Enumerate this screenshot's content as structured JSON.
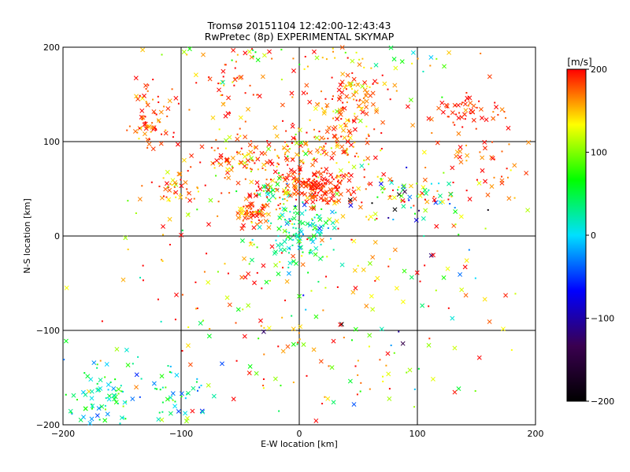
{
  "chart_data": {
    "type": "scatter",
    "title": "Tromsø 20151104 12:42:00-12:43:43",
    "subtitle": "RwPretec (8p) EXPERIMENTAL SKYMAP",
    "xlabel": "E-W location [km]",
    "ylabel": "N-S location [km]",
    "xlim": [
      -200,
      200
    ],
    "ylim": [
      -200,
      200
    ],
    "x_ticks": [
      -200,
      -100,
      0,
      100,
      200
    ],
    "y_ticks": [
      -200,
      -100,
      0,
      100,
      200
    ],
    "grid": true,
    "colorbar": {
      "label": "[m/s]",
      "range": [
        -200,
        200
      ],
      "ticks": [
        -200,
        -100,
        0,
        100,
        200
      ],
      "colormap": [
        "#000000",
        "#3a0050",
        "#0000ff",
        "#00e0ff",
        "#00ff00",
        "#ffff00",
        "#ff0000"
      ]
    },
    "marker_types": [
      "x",
      "dot"
    ],
    "clusters": [
      {
        "x": -125,
        "y": 130,
        "sx": 10,
        "sy": 16,
        "n": 70,
        "v": 180,
        "vs": 25
      },
      {
        "x": -100,
        "y": 50,
        "sx": 10,
        "sy": 8,
        "n": 40,
        "v": 170,
        "vs": 30
      },
      {
        "x": -40,
        "y": 80,
        "sx": 25,
        "sy": 15,
        "n": 110,
        "v": 170,
        "vs": 30
      },
      {
        "x": -60,
        "y": 150,
        "sx": 15,
        "sy": 20,
        "n": 40,
        "v": 180,
        "vs": 30
      },
      {
        "x": -40,
        "y": 25,
        "sx": 8,
        "sy": 6,
        "n": 70,
        "v": 180,
        "vs": 20
      },
      {
        "x": -20,
        "y": 45,
        "sx": 12,
        "sy": 10,
        "n": 50,
        "v": 120,
        "vs": 90
      },
      {
        "x": 15,
        "y": 52,
        "sx": 15,
        "sy": 8,
        "n": 160,
        "v": 190,
        "vs": 15
      },
      {
        "x": 40,
        "y": 110,
        "sx": 18,
        "sy": 30,
        "n": 130,
        "v": 170,
        "vs": 35
      },
      {
        "x": 45,
        "y": 150,
        "sx": 18,
        "sy": 12,
        "n": 60,
        "v": 175,
        "vs": 25
      },
      {
        "x": 0,
        "y": 90,
        "sx": 15,
        "sy": 12,
        "n": 50,
        "v": 160,
        "vs": 40
      },
      {
        "x": 0,
        "y": 5,
        "sx": 15,
        "sy": 15,
        "n": 110,
        "v": 20,
        "vs": 30
      },
      {
        "x": 90,
        "y": 40,
        "sx": 25,
        "sy": 12,
        "n": 70,
        "v": 60,
        "vs": 140
      },
      {
        "x": 140,
        "y": 135,
        "sx": 15,
        "sy": 8,
        "n": 50,
        "v": 190,
        "vs": 15
      },
      {
        "x": 150,
        "y": 80,
        "sx": 25,
        "sy": 25,
        "n": 50,
        "v": 175,
        "vs": 25
      },
      {
        "x": -165,
        "y": -170,
        "sx": 18,
        "sy": 20,
        "n": 80,
        "v": 40,
        "vs": 40
      },
      {
        "x": -110,
        "y": -170,
        "sx": 18,
        "sy": 20,
        "n": 50,
        "v": 40,
        "vs": 50
      },
      {
        "x": -50,
        "y": -40,
        "sx": 50,
        "sy": 50,
        "n": 70,
        "v": 150,
        "vs": 60
      },
      {
        "x": 60,
        "y": -30,
        "sx": 50,
        "sy": 40,
        "n": 60,
        "v": 100,
        "vs": 120
      },
      {
        "x": 30,
        "y": -150,
        "sx": 60,
        "sy": 40,
        "n": 50,
        "v": 120,
        "vs": 80
      },
      {
        "x": -20,
        "y": 190,
        "sx": 40,
        "sy": 8,
        "n": 40,
        "v": 130,
        "vs": 60
      },
      {
        "x": 90,
        "y": 190,
        "sx": 30,
        "sy": 8,
        "n": 20,
        "v": 60,
        "vs": 60
      },
      {
        "x": 0,
        "y": 0,
        "sx": 110,
        "sy": 110,
        "n": 160,
        "v": 160,
        "vs": 60
      }
    ]
  }
}
